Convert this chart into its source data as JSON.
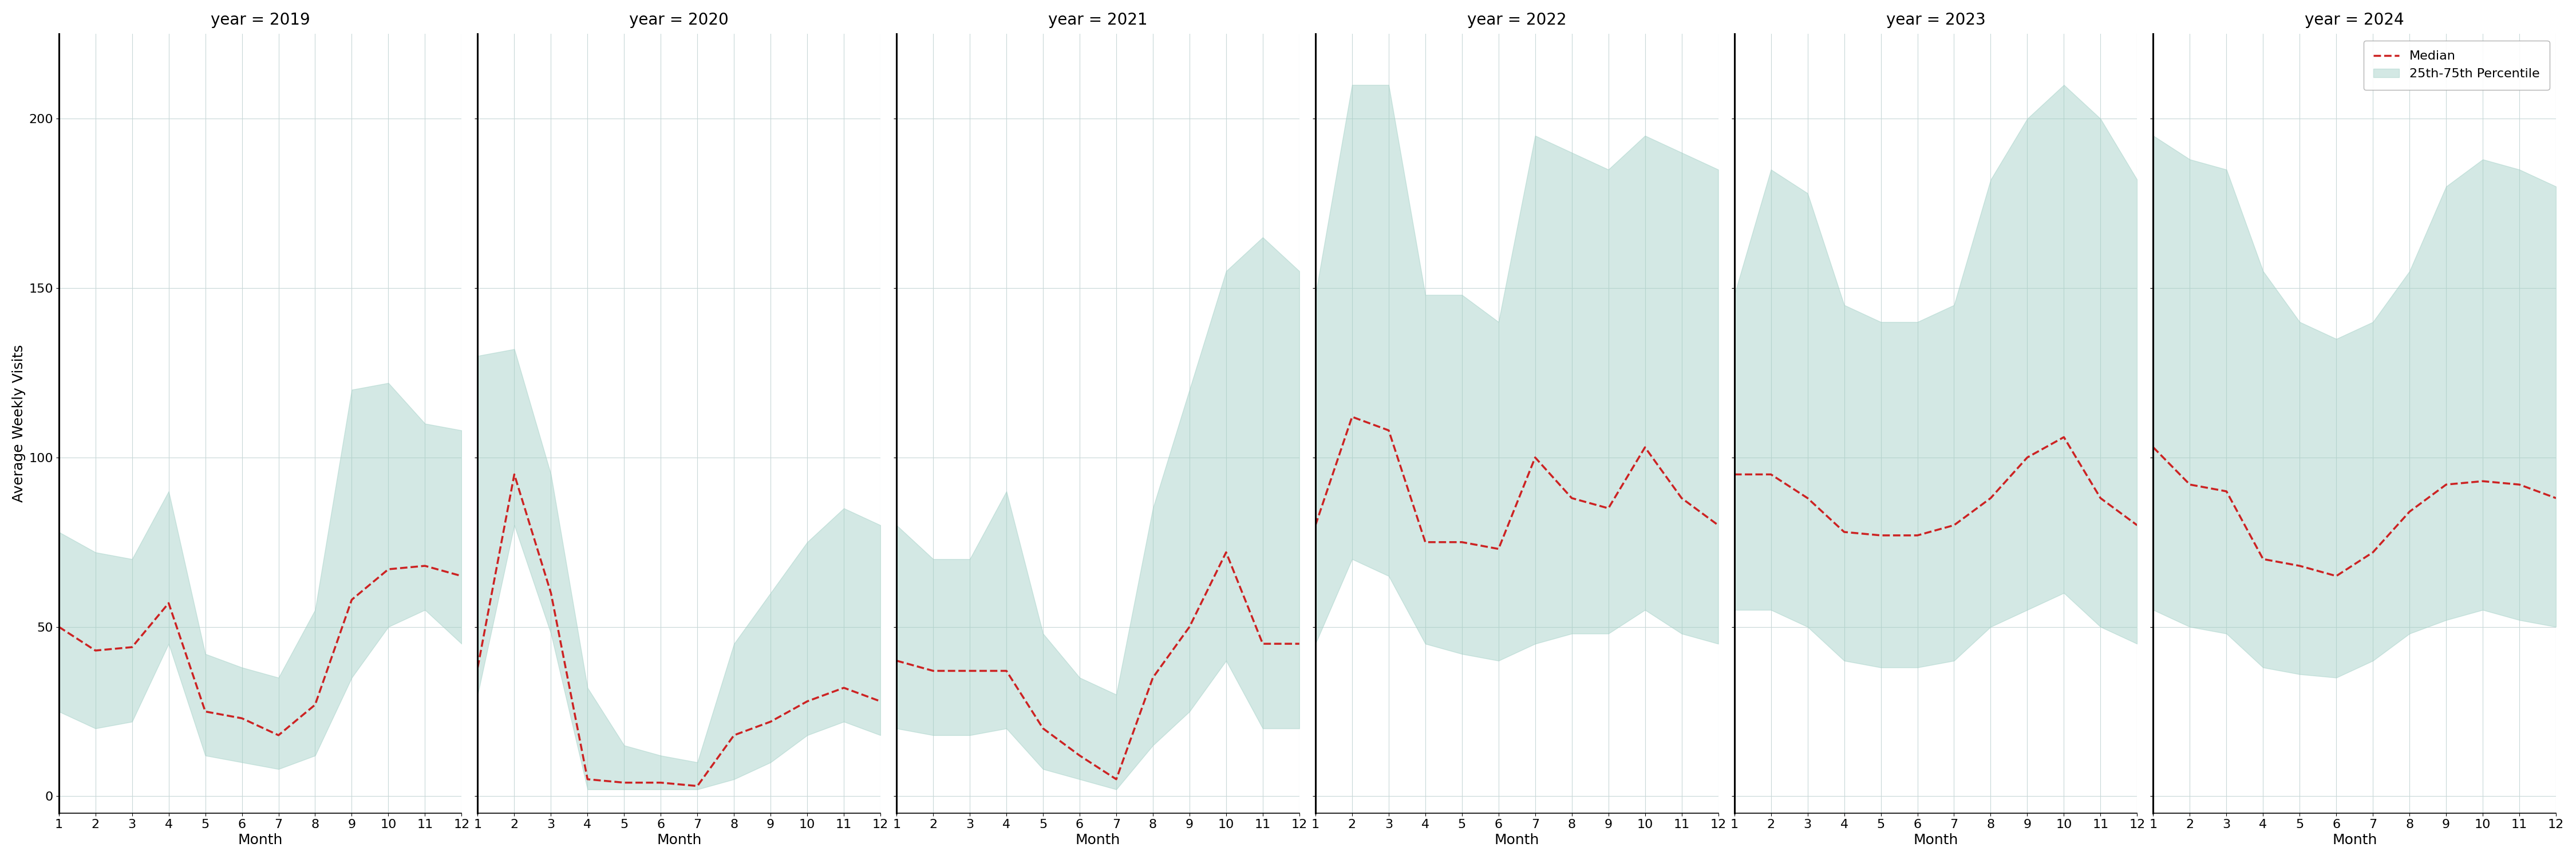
{
  "years": [
    2019,
    2020,
    2021,
    2022,
    2023,
    2024
  ],
  "months": [
    1,
    2,
    3,
    4,
    5,
    6,
    7,
    8,
    9,
    10,
    11,
    12
  ],
  "median": {
    "2019": [
      50,
      43,
      44,
      57,
      25,
      23,
      18,
      27,
      58,
      67,
      68,
      65
    ],
    "2020": [
      38,
      95,
      60,
      5,
      4,
      4,
      3,
      18,
      22,
      28,
      32,
      28
    ],
    "2021": [
      40,
      37,
      37,
      37,
      20,
      12,
      5,
      35,
      50,
      72,
      45,
      45
    ],
    "2022": [
      80,
      112,
      108,
      75,
      75,
      73,
      100,
      88,
      85,
      103,
      88,
      80
    ],
    "2023": [
      95,
      95,
      88,
      78,
      77,
      77,
      80,
      88,
      100,
      106,
      88,
      80
    ],
    "2024": [
      103,
      92,
      90,
      70,
      68,
      65,
      72,
      84,
      92,
      93,
      92,
      88
    ]
  },
  "lower": {
    "2019": [
      25,
      20,
      22,
      45,
      12,
      10,
      8,
      12,
      35,
      50,
      55,
      45
    ],
    "2020": [
      30,
      80,
      48,
      2,
      2,
      2,
      2,
      5,
      10,
      18,
      22,
      18
    ],
    "2021": [
      20,
      18,
      18,
      20,
      8,
      5,
      2,
      15,
      25,
      40,
      20,
      20
    ],
    "2022": [
      45,
      70,
      65,
      45,
      42,
      40,
      45,
      48,
      48,
      55,
      48,
      45
    ],
    "2023": [
      55,
      55,
      50,
      40,
      38,
      38,
      40,
      50,
      55,
      60,
      50,
      45
    ],
    "2024": [
      55,
      50,
      48,
      38,
      36,
      35,
      40,
      48,
      52,
      55,
      52,
      50
    ]
  },
  "upper": {
    "2019": [
      78,
      72,
      70,
      90,
      42,
      38,
      35,
      55,
      120,
      122,
      110,
      108
    ],
    "2020": [
      130,
      132,
      95,
      32,
      15,
      12,
      10,
      45,
      60,
      75,
      85,
      80
    ],
    "2021": [
      80,
      70,
      70,
      90,
      48,
      35,
      30,
      85,
      120,
      155,
      165,
      155
    ],
    "2022": [
      148,
      210,
      210,
      148,
      148,
      140,
      195,
      190,
      185,
      195,
      190,
      185
    ],
    "2023": [
      148,
      185,
      178,
      145,
      140,
      140,
      145,
      182,
      200,
      210,
      200,
      182
    ],
    "2024": [
      195,
      188,
      185,
      155,
      140,
      135,
      140,
      155,
      180,
      188,
      185,
      180
    ]
  },
  "ylim": [
    -5,
    225
  ],
  "yticks": [
    0,
    50,
    100,
    150,
    200
  ],
  "ylabel": "Average Weekly Visits",
  "xlabel": "Month",
  "fill_color": "#9ecec4",
  "fill_alpha": 0.45,
  "line_color": "#cc2222",
  "line_style": "--",
  "line_width": 2.5,
  "title_fontsize": 20,
  "label_fontsize": 18,
  "tick_fontsize": 16,
  "background_color": "#ffffff",
  "grid_color": "#c8d8d8",
  "legend_labels": [
    "Median",
    "25th-75th Percentile"
  ]
}
